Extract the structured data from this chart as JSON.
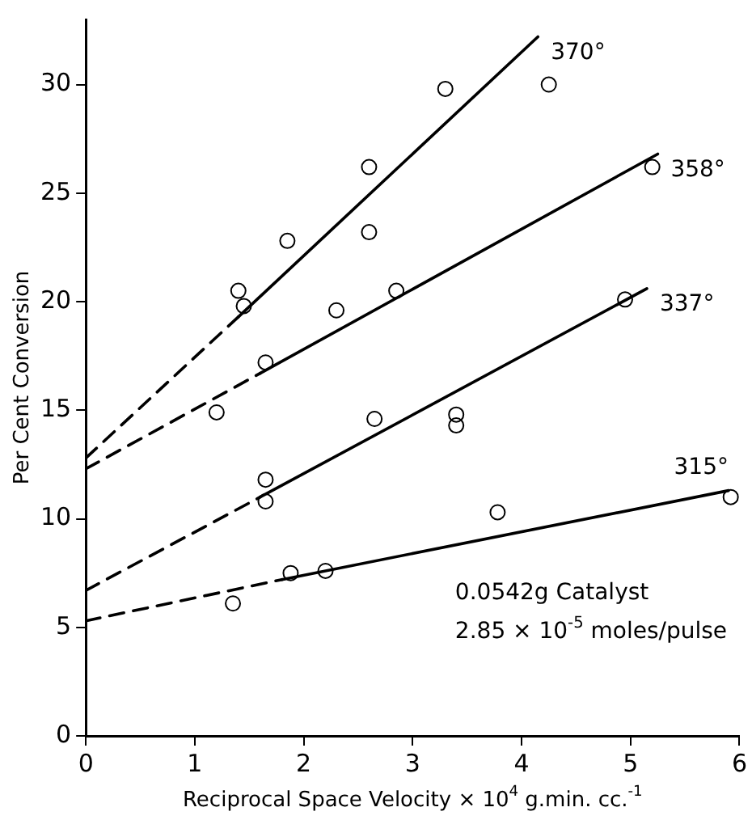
{
  "chart_data": {
    "type": "scatter",
    "xlabel": "Reciprocal Space Velocity × 10$^{4}$ g.min. cc.$^{-1}$",
    "ylabel": "Per Cent Conversion",
    "xlim": [
      0,
      6
    ],
    "xticks": [
      0,
      1,
      2,
      3,
      4,
      5,
      6
    ],
    "ylim": [
      0,
      33
    ],
    "yticks": [
      0,
      5,
      10,
      15,
      20,
      25,
      30
    ],
    "grid": false,
    "legend": false,
    "marker": "circle",
    "series": [
      {
        "color": "#000000",
        "x": [
          1.4,
          1.45,
          1.85,
          2.6,
          2.6,
          3.3,
          4.25
        ],
        "values": [
          20.5,
          19.8,
          22.8,
          26.2,
          23.2,
          29.8,
          30.0
        ]
      },
      {
        "color": "#000000",
        "x": [
          1.2,
          1.65,
          2.3,
          2.85,
          5.2
        ],
        "values": [
          14.9,
          17.2,
          19.6,
          20.5,
          26.2
        ]
      },
      {
        "color": "#000000",
        "x": [
          1.65,
          1.65,
          2.65,
          3.4,
          3.4,
          4.95
        ],
        "values": [
          11.8,
          10.8,
          14.6,
          14.8,
          14.3,
          20.1
        ]
      },
      {
        "color": "#000000",
        "x": [
          1.35,
          1.88,
          2.2,
          3.78,
          5.92
        ],
        "values": [
          6.1,
          7.5,
          7.6,
          10.3,
          11.0
        ]
      },
      {
        "type": "line",
        "color": "#000000",
        "marker": "none",
        "line_style": "dashed",
        "x": [
          0,
          1.4
        ],
        "values": [
          12.8,
          19.3
        ]
      },
      {
        "type": "line",
        "color": "#000000",
        "marker": "none",
        "line_style": "solid",
        "x": [
          1.4,
          4.15
        ],
        "values": [
          19.3,
          32.2
        ]
      },
      {
        "type": "line",
        "color": "#000000",
        "marker": "none",
        "line_style": "dashed",
        "x": [
          0,
          1.6
        ],
        "values": [
          12.3,
          16.7
        ]
      },
      {
        "type": "line",
        "color": "#000000",
        "marker": "none",
        "line_style": "solid",
        "x": [
          1.6,
          5.25
        ],
        "values": [
          16.7,
          26.8
        ]
      },
      {
        "type": "line",
        "color": "#000000",
        "marker": "none",
        "line_style": "dashed",
        "x": [
          0,
          1.6
        ],
        "values": [
          6.7,
          11.0
        ]
      },
      {
        "type": "line",
        "color": "#000000",
        "marker": "none",
        "line_style": "solid",
        "x": [
          1.6,
          5.15
        ],
        "values": [
          11.0,
          20.6
        ]
      },
      {
        "type": "line",
        "color": "#000000",
        "marker": "none",
        "line_style": "dashed",
        "x": [
          0,
          1.8
        ],
        "values": [
          5.3,
          7.2
        ]
      },
      {
        "type": "line",
        "color": "#000000",
        "marker": "none",
        "line_style": "solid",
        "x": [
          1.8,
          5.9
        ],
        "values": [
          7.2,
          11.3
        ]
      }
    ],
    "annotations": [
      {
        "text": "370°",
        "x": 4.15,
        "y": 32.2
      },
      {
        "text": "358°",
        "x": 5.25,
        "y": 26.8
      },
      {
        "text": "337°",
        "x": 5.15,
        "y": 20.6
      },
      {
        "text": "315°",
        "x": 5.9,
        "y": 11.3
      },
      "0.0542g Catalyst",
      "2.85 × 10$^{-5}$ moles/pulse"
    ]
  }
}
